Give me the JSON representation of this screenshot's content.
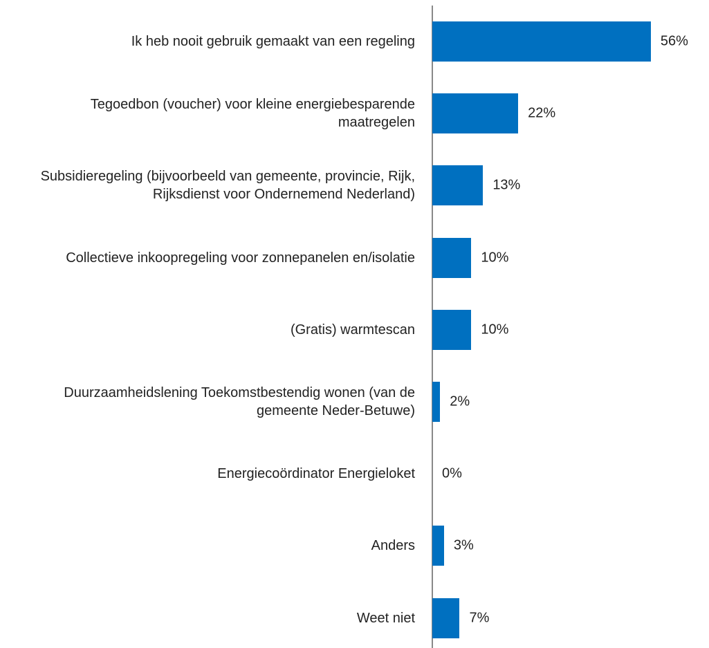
{
  "chart_data": {
    "type": "bar",
    "orientation": "horizontal",
    "categories": [
      "Ik heb nooit gebruik gemaakt van een regeling",
      "Tegoedbon (voucher) voor kleine energiebesparende maatregelen",
      "Subsidieregeling (bijvoorbeeld van gemeente, provincie, Rijk, Rijksdienst voor Ondernemend Nederland)",
      "Collectieve inkoopregeling voor zonnepanelen en/isolatie",
      "(Gratis) warmtescan",
      "Duurzaamheidslening Toekomstbestendig wonen (van de gemeente Neder-Betuwe)",
      "Energiecoördinator Energieloket",
      "Anders",
      "Weet niet"
    ],
    "values": [
      56,
      22,
      13,
      10,
      10,
      2,
      0,
      3,
      7
    ],
    "value_labels": [
      "56%",
      "22%",
      "13%",
      "10%",
      "10%",
      "2%",
      "0%",
      "3%",
      "7%"
    ],
    "color": "#0070c0"
  }
}
